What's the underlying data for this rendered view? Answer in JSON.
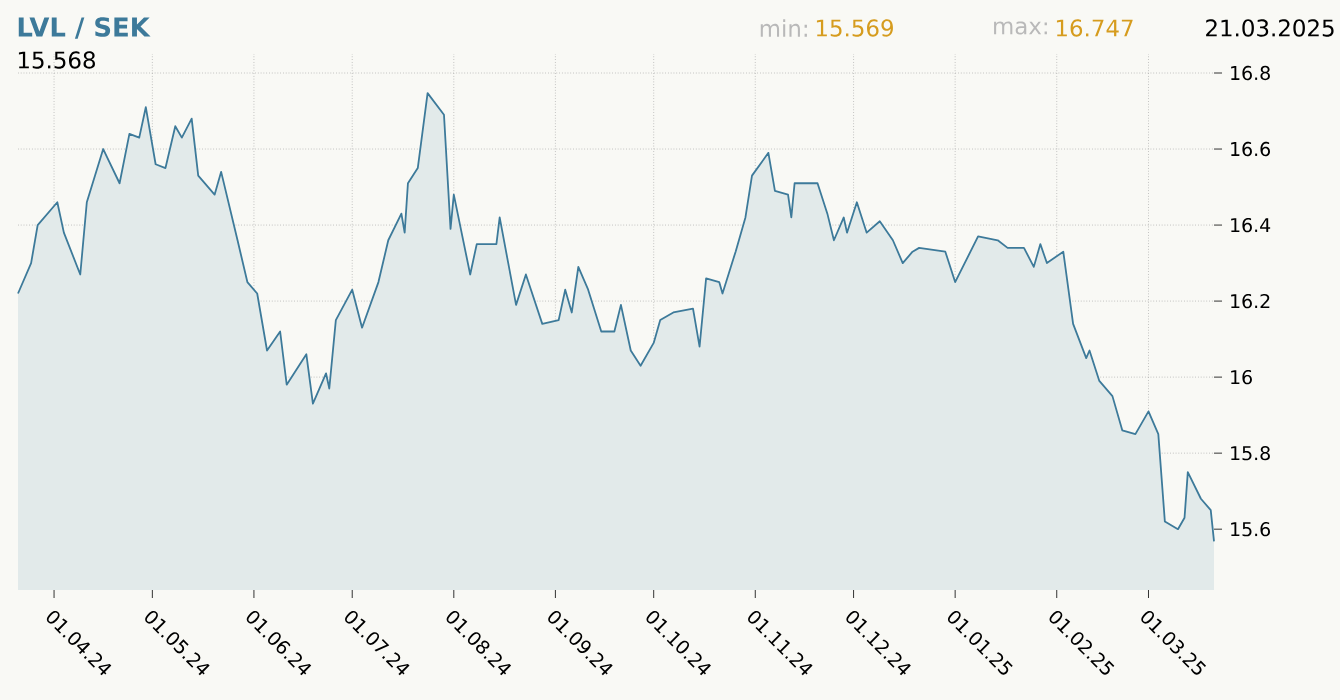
{
  "chart_data": {
    "type": "area",
    "title": "LVL / SEK",
    "annotations": [
      "min:",
      "15.569",
      "max:",
      "16.747",
      "21.03.2025",
      "15.568"
    ],
    "x": [
      "2024-03-21",
      "2024-03-25",
      "2024-03-27",
      "2024-04-02",
      "2024-04-04",
      "2024-04-09",
      "2024-04-11",
      "2024-04-16",
      "2024-04-21",
      "2024-04-24",
      "2024-04-27",
      "2024-04-29",
      "2024-05-02",
      "2024-05-05",
      "2024-05-08",
      "2024-05-10",
      "2024-05-13",
      "2024-05-15",
      "2024-05-20",
      "2024-05-22",
      "2024-05-27",
      "2024-05-30",
      "2024-06-02",
      "2024-06-05",
      "2024-06-09",
      "2024-06-11",
      "2024-06-17",
      "2024-06-19",
      "2024-06-23",
      "2024-06-24",
      "2024-06-26",
      "2024-07-01",
      "2024-07-04",
      "2024-07-09",
      "2024-07-12",
      "2024-07-16",
      "2024-07-17",
      "2024-07-18",
      "2024-07-21",
      "2024-07-24",
      "2024-07-29",
      "2024-07-31",
      "2024-08-01",
      "2024-08-06",
      "2024-08-08",
      "2024-08-14",
      "2024-08-15",
      "2024-08-20",
      "2024-08-23",
      "2024-08-28",
      "2024-09-02",
      "2024-09-04",
      "2024-09-06",
      "2024-09-08",
      "2024-09-11",
      "2024-09-15",
      "2024-09-19",
      "2024-09-21",
      "2024-09-24",
      "2024-09-27",
      "2024-10-01",
      "2024-10-03",
      "2024-10-07",
      "2024-10-13",
      "2024-10-15",
      "2024-10-17",
      "2024-10-21",
      "2024-10-22",
      "2024-10-26",
      "2024-10-29",
      "2024-10-31",
      "2024-11-05",
      "2024-11-07",
      "2024-11-11",
      "2024-11-12",
      "2024-11-13",
      "2024-11-20",
      "2024-11-23",
      "2024-11-25",
      "2024-11-28",
      "2024-11-29",
      "2024-12-02",
      "2024-12-05",
      "2024-12-09",
      "2024-12-13",
      "2024-12-16",
      "2024-12-19",
      "2024-12-21",
      "2024-12-29",
      "2025-01-01",
      "2025-01-08",
      "2025-01-14",
      "2025-01-17",
      "2025-01-22",
      "2025-01-25",
      "2025-01-27",
      "2025-01-29",
      "2025-02-03",
      "2025-02-06",
      "2025-02-10",
      "2025-02-11",
      "2025-02-14",
      "2025-02-18",
      "2025-02-21",
      "2025-02-25",
      "2025-03-01",
      "2025-03-04",
      "2025-03-06",
      "2025-03-10",
      "2025-03-12",
      "2025-03-13",
      "2025-03-17",
      "2025-03-20",
      "2025-03-21"
    ],
    "series": [
      {
        "color": "#3d7a9a",
        "values": [
          16.22,
          16.3,
          16.4,
          16.46,
          16.38,
          16.27,
          16.46,
          16.6,
          16.51,
          16.64,
          16.63,
          16.71,
          16.56,
          16.55,
          16.66,
          16.63,
          16.68,
          16.53,
          16.48,
          16.54,
          16.36,
          16.25,
          16.22,
          16.07,
          16.12,
          15.98,
          16.06,
          15.93,
          16.01,
          15.97,
          16.15,
          16.23,
          16.13,
          16.25,
          16.36,
          16.43,
          16.38,
          16.51,
          16.55,
          16.747,
          16.69,
          16.39,
          16.48,
          16.27,
          16.35,
          16.35,
          16.42,
          16.19,
          16.27,
          16.14,
          16.15,
          16.23,
          16.17,
          16.29,
          16.23,
          16.12,
          16.12,
          16.19,
          16.07,
          16.03,
          16.09,
          16.15,
          16.17,
          16.18,
          16.08,
          16.26,
          16.25,
          16.22,
          16.33,
          16.42,
          16.53,
          16.59,
          16.49,
          16.48,
          16.42,
          16.51,
          16.51,
          16.43,
          16.36,
          16.42,
          16.38,
          16.46,
          16.38,
          16.41,
          16.36,
          16.3,
          16.33,
          16.34,
          16.33,
          16.25,
          16.37,
          16.36,
          16.34,
          16.34,
          16.29,
          16.35,
          16.3,
          16.33,
          16.14,
          16.05,
          16.07,
          15.99,
          15.95,
          15.86,
          15.85,
          15.91,
          15.85,
          15.62,
          15.6,
          15.63,
          15.75,
          15.68,
          15.65,
          15.568
        ]
      }
    ],
    "xlim": [
      "2024-03-21",
      "2025-03-21"
    ],
    "xticks": [
      {
        "value": "2024-04-01",
        "label": "01.04.24"
      },
      {
        "value": "2024-05-01",
        "label": "01.05.24"
      },
      {
        "value": "2024-06-01",
        "label": "01.06.24"
      },
      {
        "value": "2024-07-01",
        "label": "01.07.24"
      },
      {
        "value": "2024-08-01",
        "label": "01.08.24"
      },
      {
        "value": "2024-09-01",
        "label": "01.09.24"
      },
      {
        "value": "2024-10-01",
        "label": "01.10.24"
      },
      {
        "value": "2024-11-01",
        "label": "01.11.24"
      },
      {
        "value": "2024-12-01",
        "label": "01.12.24"
      },
      {
        "value": "2025-01-01",
        "label": "01.01.25"
      },
      {
        "value": "2025-02-01",
        "label": "01.02.25"
      },
      {
        "value": "2025-03-01",
        "label": "01.03.25"
      }
    ],
    "ylim": [
      15.44,
      16.85
    ],
    "yticks": [
      15.6,
      15.8,
      16,
      16.2,
      16.4,
      16.6,
      16.8
    ],
    "grid": true
  }
}
